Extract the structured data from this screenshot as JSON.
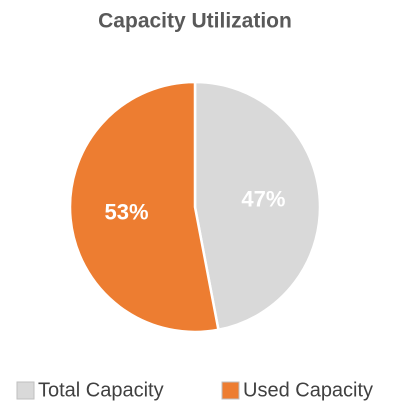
{
  "chart_data": {
    "type": "pie",
    "title": "Capacity Utilization",
    "categories": [
      "Total Capacity",
      "Used Capacity"
    ],
    "values": [
      47,
      53
    ],
    "value_labels": [
      "47%",
      "53%"
    ],
    "colors": [
      "#d9d9d9",
      "#ed7d31"
    ]
  }
}
